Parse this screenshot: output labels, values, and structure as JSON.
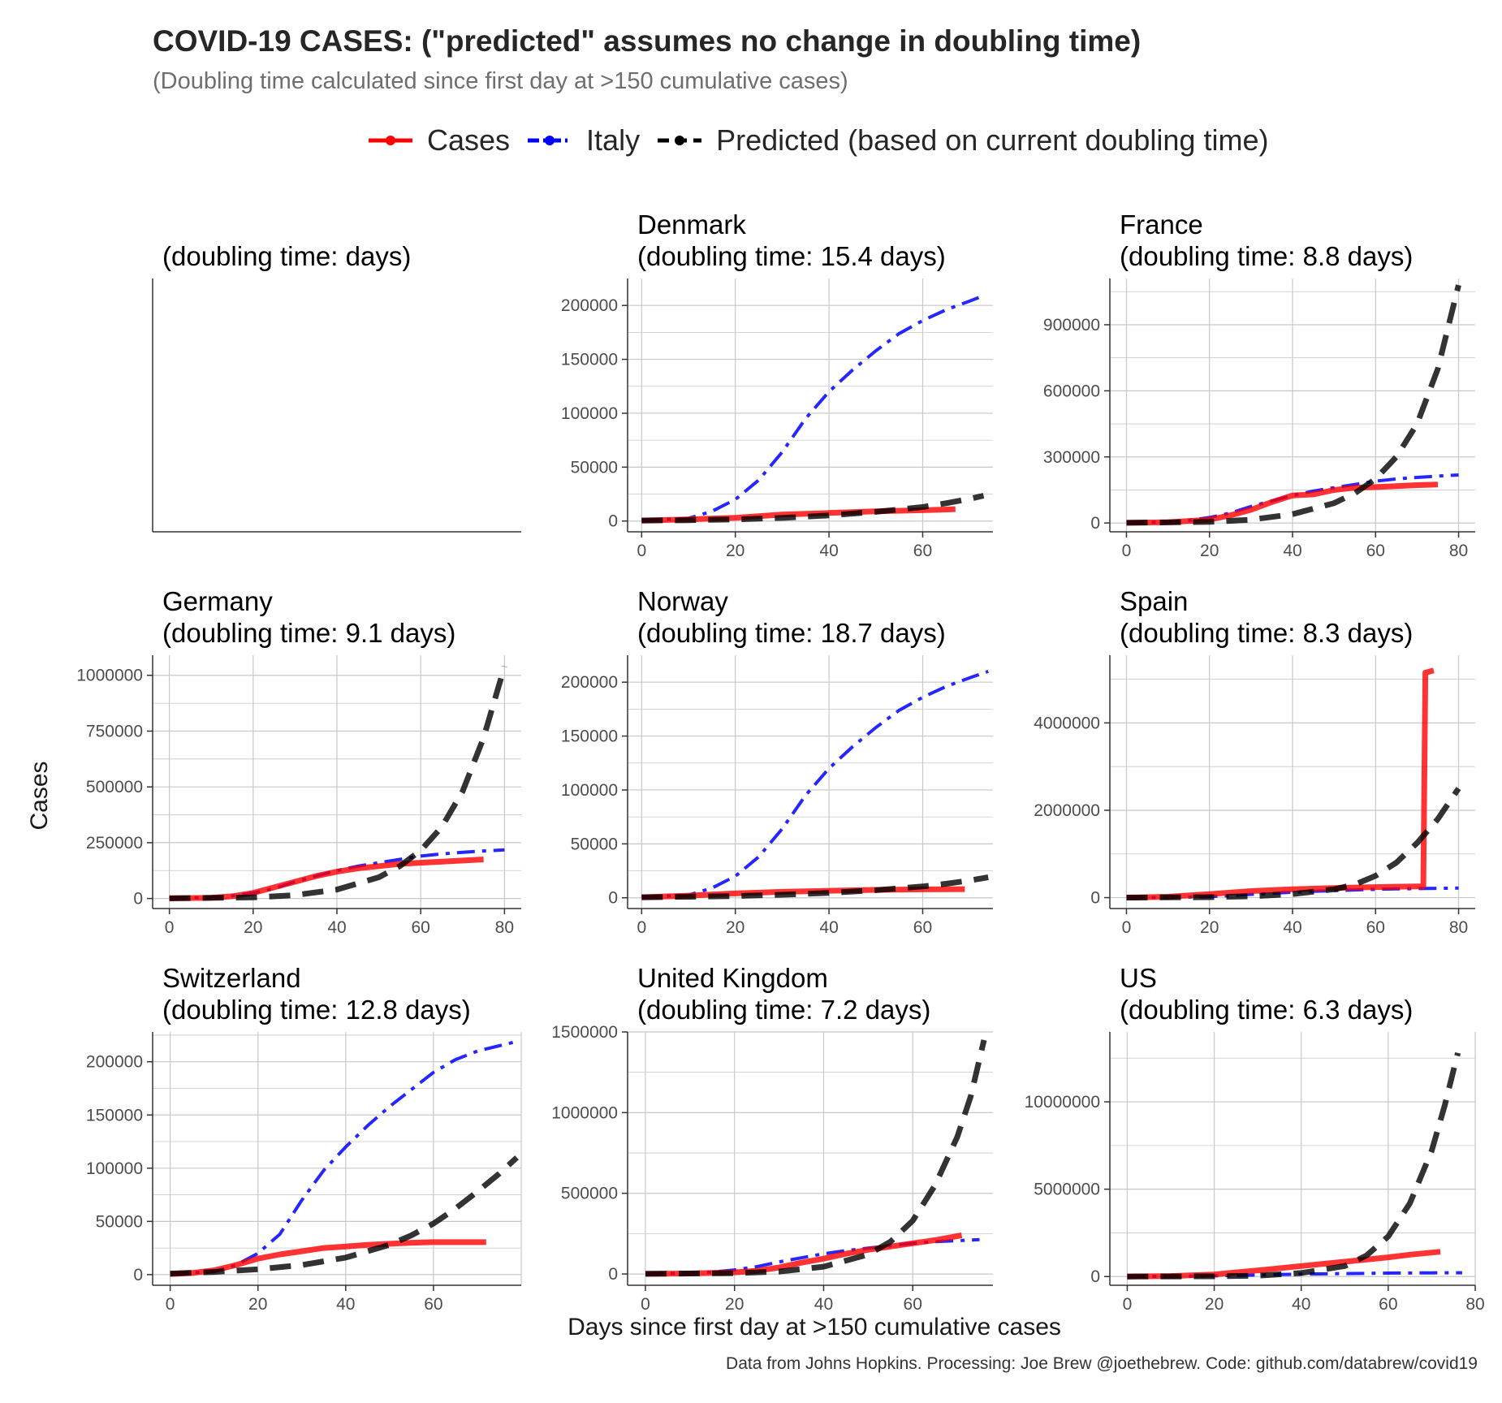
{
  "title": "COVID-19 CASES: (\"predicted\" assumes no change in doubling time)",
  "subtitle": "(Doubling time calculated since first day at >150 cumulative cases)",
  "caption": "Data from Johns Hopkins. Processing: Joe Brew @joethebrew. Code: github.com/databrew/covid19",
  "colors": {
    "cases": "#ff0000",
    "italy": "#0000ff",
    "predicted": "#000000",
    "grid": "#c8c8c8",
    "axis": "#333333"
  },
  "legend": [
    {
      "key": "cases",
      "label": "Cases"
    },
    {
      "key": "italy",
      "label": "Italy"
    },
    {
      "key": "predicted",
      "label": "Predicted (based on current doubling time)"
    }
  ],
  "chart_data": {
    "type": "line",
    "xlabel": "Days since first day at >150 cumulative cases",
    "ylabel": "Cases",
    "legend_position": "top",
    "grid": true,
    "panels": [
      {
        "country": "",
        "subtitle": "(doubling time:  days)",
        "empty": true
      },
      {
        "country": "Denmark",
        "subtitle": "(doubling time: 15.4 days)",
        "xlim": [
          -3,
          75
        ],
        "ylim": [
          -10000,
          225000
        ],
        "xticks": [
          0,
          20,
          40,
          60
        ],
        "yticks": [
          0,
          50000,
          100000,
          150000,
          200000
        ],
        "series": [
          {
            "key": "italy",
            "x": [
              0,
              10,
              15,
              20,
              25,
              30,
              35,
              40,
              45,
              50,
              55,
              60,
              65,
              70,
              73
            ],
            "y": [
              500,
              2500,
              9000,
              20000,
              38000,
              64000,
              95000,
              120000,
              140000,
              158000,
              174000,
              186000,
              196000,
              204000,
              209000
            ]
          },
          {
            "key": "cases",
            "x": [
              0,
              10,
              20,
              30,
              40,
              50,
              60,
              67
            ],
            "y": [
              500,
              1500,
              3000,
              6000,
              7500,
              9000,
              10000,
              11000
            ]
          },
          {
            "key": "predicted",
            "x": [
              0,
              10,
              20,
              30,
              40,
              50,
              60,
              65,
              70,
              73
            ],
            "y": [
              500,
              800,
              1500,
              2900,
              5200,
              8500,
              13000,
              16500,
              20500,
              23500
            ]
          }
        ]
      },
      {
        "country": "France",
        "subtitle": "(doubling time: 8.8 days)",
        "xlim": [
          -4,
          84
        ],
        "ylim": [
          -40000,
          1110000
        ],
        "xticks": [
          0,
          20,
          40,
          60,
          80
        ],
        "yticks": [
          0,
          300000,
          600000,
          900000
        ],
        "series": [
          {
            "key": "italy",
            "x": [
              0,
              10,
              15,
              20,
              25,
              30,
              35,
              40,
              45,
              50,
              55,
              60,
              65,
              70,
              75,
              80
            ],
            "y": [
              1000,
              5000,
              12000,
              25000,
              45000,
              75000,
              100000,
              125000,
              145000,
              160000,
              175000,
              190000,
              200000,
              207000,
              213000,
              218000
            ]
          },
          {
            "key": "cases",
            "x": [
              0,
              10,
              20,
              25,
              30,
              35,
              40,
              45,
              50,
              55,
              60,
              65,
              70,
              75
            ],
            "y": [
              1000,
              3000,
              15000,
              35000,
              60000,
              95000,
              125000,
              130000,
              150000,
              160000,
              163000,
              167000,
              172000,
              175000
            ]
          },
          {
            "key": "predicted",
            "x": [
              0,
              20,
              30,
              40,
              50,
              55,
              60,
              65,
              70,
              75,
              80
            ],
            "y": [
              1000,
              5000,
              15000,
              40000,
              90000,
              135000,
              200000,
              300000,
              450000,
              700000,
              1080000
            ]
          }
        ]
      },
      {
        "country": "Germany",
        "subtitle": "(doubling time: 9.1 days)",
        "xlim": [
          -4,
          84
        ],
        "ylim": [
          -45000,
          1090000
        ],
        "xticks": [
          0,
          20,
          40,
          60,
          80
        ],
        "yticks": [
          0,
          250000,
          500000,
          750000,
          1000000
        ],
        "series": [
          {
            "key": "italy",
            "x": [
              0,
              10,
              15,
              20,
              25,
              30,
              35,
              40,
              45,
              50,
              55,
              60,
              65,
              70,
              75,
              80
            ],
            "y": [
              1000,
              5000,
              12000,
              25000,
              45000,
              75000,
              100000,
              125000,
              145000,
              160000,
              175000,
              190000,
              200000,
              207000,
              213000,
              218000
            ]
          },
          {
            "key": "cases",
            "x": [
              0,
              10,
              15,
              20,
              25,
              30,
              35,
              40,
              45,
              50,
              55,
              60,
              65,
              70,
              75
            ],
            "y": [
              1000,
              3000,
              10000,
              25000,
              50000,
              75000,
              100000,
              120000,
              135000,
              145000,
              155000,
              160000,
              165000,
              170000,
              175000
            ]
          },
          {
            "key": "predicted",
            "x": [
              0,
              20,
              30,
              40,
              50,
              55,
              60,
              65,
              70,
              75,
              80
            ],
            "y": [
              1000,
              5000,
              15000,
              40000,
              95000,
              145000,
              215000,
              320000,
              480000,
              720000,
              1040000
            ]
          }
        ]
      },
      {
        "country": "Norway",
        "subtitle": "(doubling time: 18.7 days)",
        "xlim": [
          -3,
          75
        ],
        "ylim": [
          -10000,
          225000
        ],
        "xticks": [
          0,
          20,
          40,
          60
        ],
        "yticks": [
          0,
          50000,
          100000,
          150000,
          200000
        ],
        "series": [
          {
            "key": "italy",
            "x": [
              0,
              10,
              15,
              20,
              25,
              30,
              35,
              40,
              45,
              50,
              55,
              60,
              65,
              70,
              74
            ],
            "y": [
              500,
              2500,
              9000,
              20000,
              38000,
              64000,
              95000,
              120000,
              140000,
              158000,
              174000,
              186000,
              196000,
              204000,
              210000
            ]
          },
          {
            "key": "cases",
            "x": [
              0,
              10,
              20,
              30,
              40,
              50,
              60,
              69
            ],
            "y": [
              500,
              2000,
              4000,
              5500,
              6500,
              7300,
              7800,
              8000
            ]
          },
          {
            "key": "predicted",
            "x": [
              0,
              10,
              20,
              30,
              40,
              50,
              60,
              65,
              70,
              74
            ],
            "y": [
              500,
              900,
              1600,
              2800,
              4500,
              7000,
              10500,
              13000,
              16000,
              19000
            ]
          }
        ]
      },
      {
        "country": "Spain",
        "subtitle": "(doubling time: 8.3 days)",
        "xlim": [
          -4,
          84
        ],
        "ylim": [
          -250000,
          5550000
        ],
        "xticks": [
          0,
          20,
          40,
          60,
          80
        ],
        "yticks": [
          0,
          2000000,
          4000000
        ],
        "series": [
          {
            "key": "italy",
            "x": [
              0,
              10,
              15,
              20,
              25,
              30,
              35,
              40,
              45,
              50,
              55,
              60,
              65,
              70,
              75,
              80
            ],
            "y": [
              1000,
              5000,
              12000,
              25000,
              45000,
              75000,
              100000,
              125000,
              145000,
              160000,
              175000,
              190000,
              200000,
              207000,
              213000,
              218000
            ]
          },
          {
            "key": "cases",
            "x": [
              0,
              10,
              20,
              30,
              40,
              50,
              60,
              65,
              71.5,
              72,
              74
            ],
            "y": [
              1000,
              20000,
              80000,
              150000,
              190000,
              220000,
              240000,
              250000,
              260000,
              5150000,
              5200000
            ]
          },
          {
            "key": "predicted",
            "x": [
              0,
              20,
              30,
              40,
              50,
              55,
              60,
              65,
              70,
              75,
              80
            ],
            "y": [
              1000,
              10000,
              30000,
              80000,
              190000,
              300000,
              500000,
              800000,
              1250000,
              1800000,
              2500000
            ]
          }
        ]
      },
      {
        "country": "Switzerland",
        "subtitle": "(doubling time: 12.8 days)",
        "xlim": [
          -4,
          80
        ],
        "ylim": [
          -10000,
          228000
        ],
        "xticks": [
          0,
          20,
          40,
          60
        ],
        "yticks": [
          0,
          50000,
          100000,
          150000,
          200000
        ],
        "series": [
          {
            "key": "italy",
            "x": [
              0,
              10,
              15,
              20,
              25,
              30,
              35,
              40,
              45,
              50,
              55,
              60,
              65,
              70,
              75,
              79
            ],
            "y": [
              500,
              3000,
              9000,
              20000,
              38000,
              70000,
              98000,
              120000,
              140000,
              158000,
              174000,
              190000,
              202000,
              210000,
              215000,
              219000
            ]
          },
          {
            "key": "cases",
            "x": [
              0,
              5,
              10,
              15,
              20,
              25,
              30,
              35,
              40,
              45,
              50,
              55,
              60,
              72
            ],
            "y": [
              500,
              1500,
              4000,
              9000,
              15000,
              19000,
              22000,
              25000,
              26500,
              28000,
              29000,
              30000,
              30500,
              30500
            ]
          },
          {
            "key": "predicted",
            "x": [
              0,
              10,
              20,
              30,
              40,
              50,
              55,
              60,
              65,
              70,
              75,
              79
            ],
            "y": [
              1000,
              2500,
              5000,
              9000,
              16000,
              28000,
              37000,
              48000,
              62000,
              78000,
              95000,
              110000
            ]
          }
        ]
      },
      {
        "country": "United Kingdom",
        "subtitle": "(doubling time: 7.2 days)",
        "xlim": [
          -4,
          78
        ],
        "ylim": [
          -70000,
          1500000
        ],
        "xticks": [
          0,
          20,
          40,
          60
        ],
        "yticks": [
          0,
          500000,
          1000000,
          1500000
        ],
        "series": [
          {
            "key": "italy",
            "x": [
              0,
              10,
              15,
              20,
              25,
              30,
              35,
              40,
              45,
              50,
              55,
              60,
              65,
              70,
              75
            ],
            "y": [
              1000,
              5000,
              12000,
              25000,
              45000,
              75000,
              100000,
              125000,
              145000,
              160000,
              175000,
              190000,
              200000,
              207000,
              213000
            ]
          },
          {
            "key": "cases",
            "x": [
              0,
              10,
              20,
              25,
              30,
              35,
              40,
              45,
              50,
              55,
              60,
              65,
              71
            ],
            "y": [
              1000,
              3000,
              10000,
              20000,
              40000,
              70000,
              95000,
              125000,
              150000,
              170000,
              190000,
              210000,
              240000
            ]
          },
          {
            "key": "predicted",
            "x": [
              0,
              20,
              30,
              40,
              50,
              55,
              60,
              65,
              70,
              73,
              76
            ],
            "y": [
              1000,
              5000,
              15000,
              45000,
              120000,
              200000,
              330000,
              550000,
              850000,
              1100000,
              1450000
            ]
          }
        ]
      },
      {
        "country": "US",
        "subtitle": "(doubling time: 6.3 days)",
        "xlim": [
          -4,
          80
        ],
        "ylim": [
          -500000,
          14000000
        ],
        "xticks": [
          0,
          20,
          40,
          60,
          80
        ],
        "yticks": [
          0,
          5000000,
          10000000
        ],
        "series": [
          {
            "key": "italy",
            "x": [
              0,
              10,
              20,
              30,
              40,
              50,
              60,
              70,
              77
            ],
            "y": [
              1000,
              10000,
              40000,
              90000,
              140000,
              170000,
              195000,
              210000,
              218000
            ]
          },
          {
            "key": "cases",
            "x": [
              0,
              10,
              20,
              30,
              40,
              50,
              60,
              65,
              72
            ],
            "y": [
              1000,
              30000,
              120000,
              350000,
              600000,
              850000,
              1100000,
              1250000,
              1420000
            ]
          },
          {
            "key": "predicted",
            "x": [
              0,
              20,
              30,
              40,
              50,
              55,
              60,
              65,
              70,
              73,
              76
            ],
            "y": [
              1000,
              10000,
              50000,
              200000,
              600000,
              1200000,
              2300000,
              4200000,
              7200000,
              9800000,
              12800000
            ]
          }
        ]
      }
    ]
  }
}
